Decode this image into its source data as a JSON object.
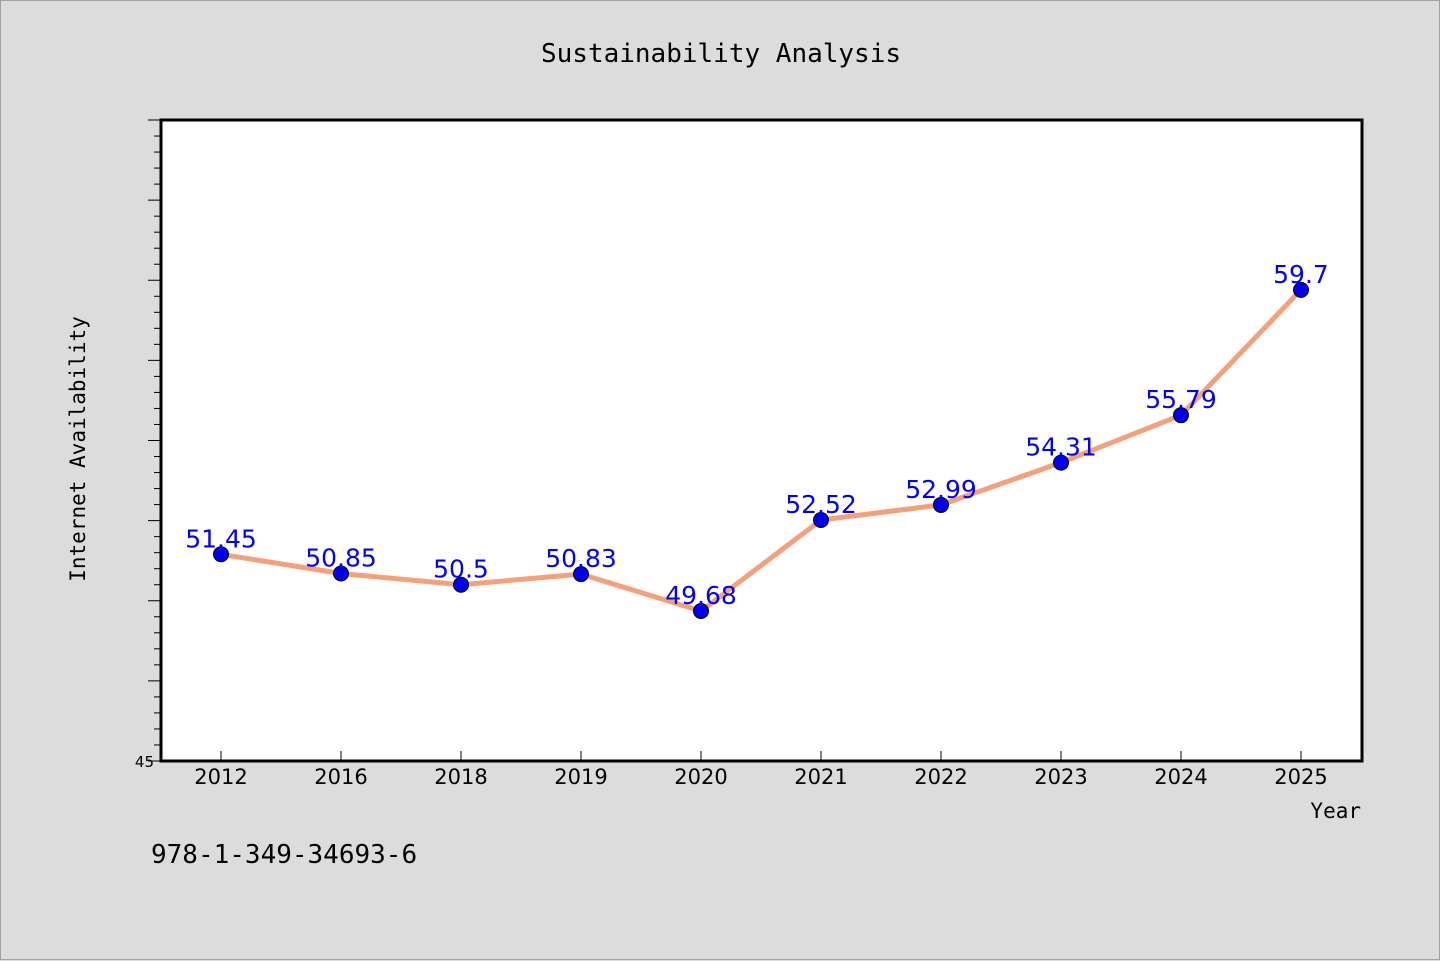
{
  "chart_data": {
    "type": "line",
    "title": "Sustainability Analysis",
    "xlabel": "Year",
    "ylabel": "Internet Availability",
    "categories": [
      "2012",
      "2016",
      "2018",
      "2019",
      "2020",
      "2021",
      "2022",
      "2023",
      "2024",
      "2025"
    ],
    "series": [
      {
        "values": [
          51.45,
          50.85,
          50.5,
          50.83,
          49.68,
          52.52,
          52.99,
          54.31,
          55.79,
          59.7
        ],
        "labels": [
          "51.45",
          "50.85",
          "50.5",
          "50.83",
          "49.68",
          "52.52",
          "52.99",
          "54.31",
          "55.79",
          "59.7"
        ],
        "line_color": "#f4a07a",
        "marker_color": "#0000ee"
      }
    ],
    "ylim": [
      45,
      65
    ],
    "ytick_labels": [
      "45"
    ],
    "grid": false,
    "legend": "none",
    "footnote": "978-1-349-34693-6",
    "label_color": "#0000ff",
    "background_color": "#dcdcdc",
    "plot_background_color": "#ffffff"
  }
}
